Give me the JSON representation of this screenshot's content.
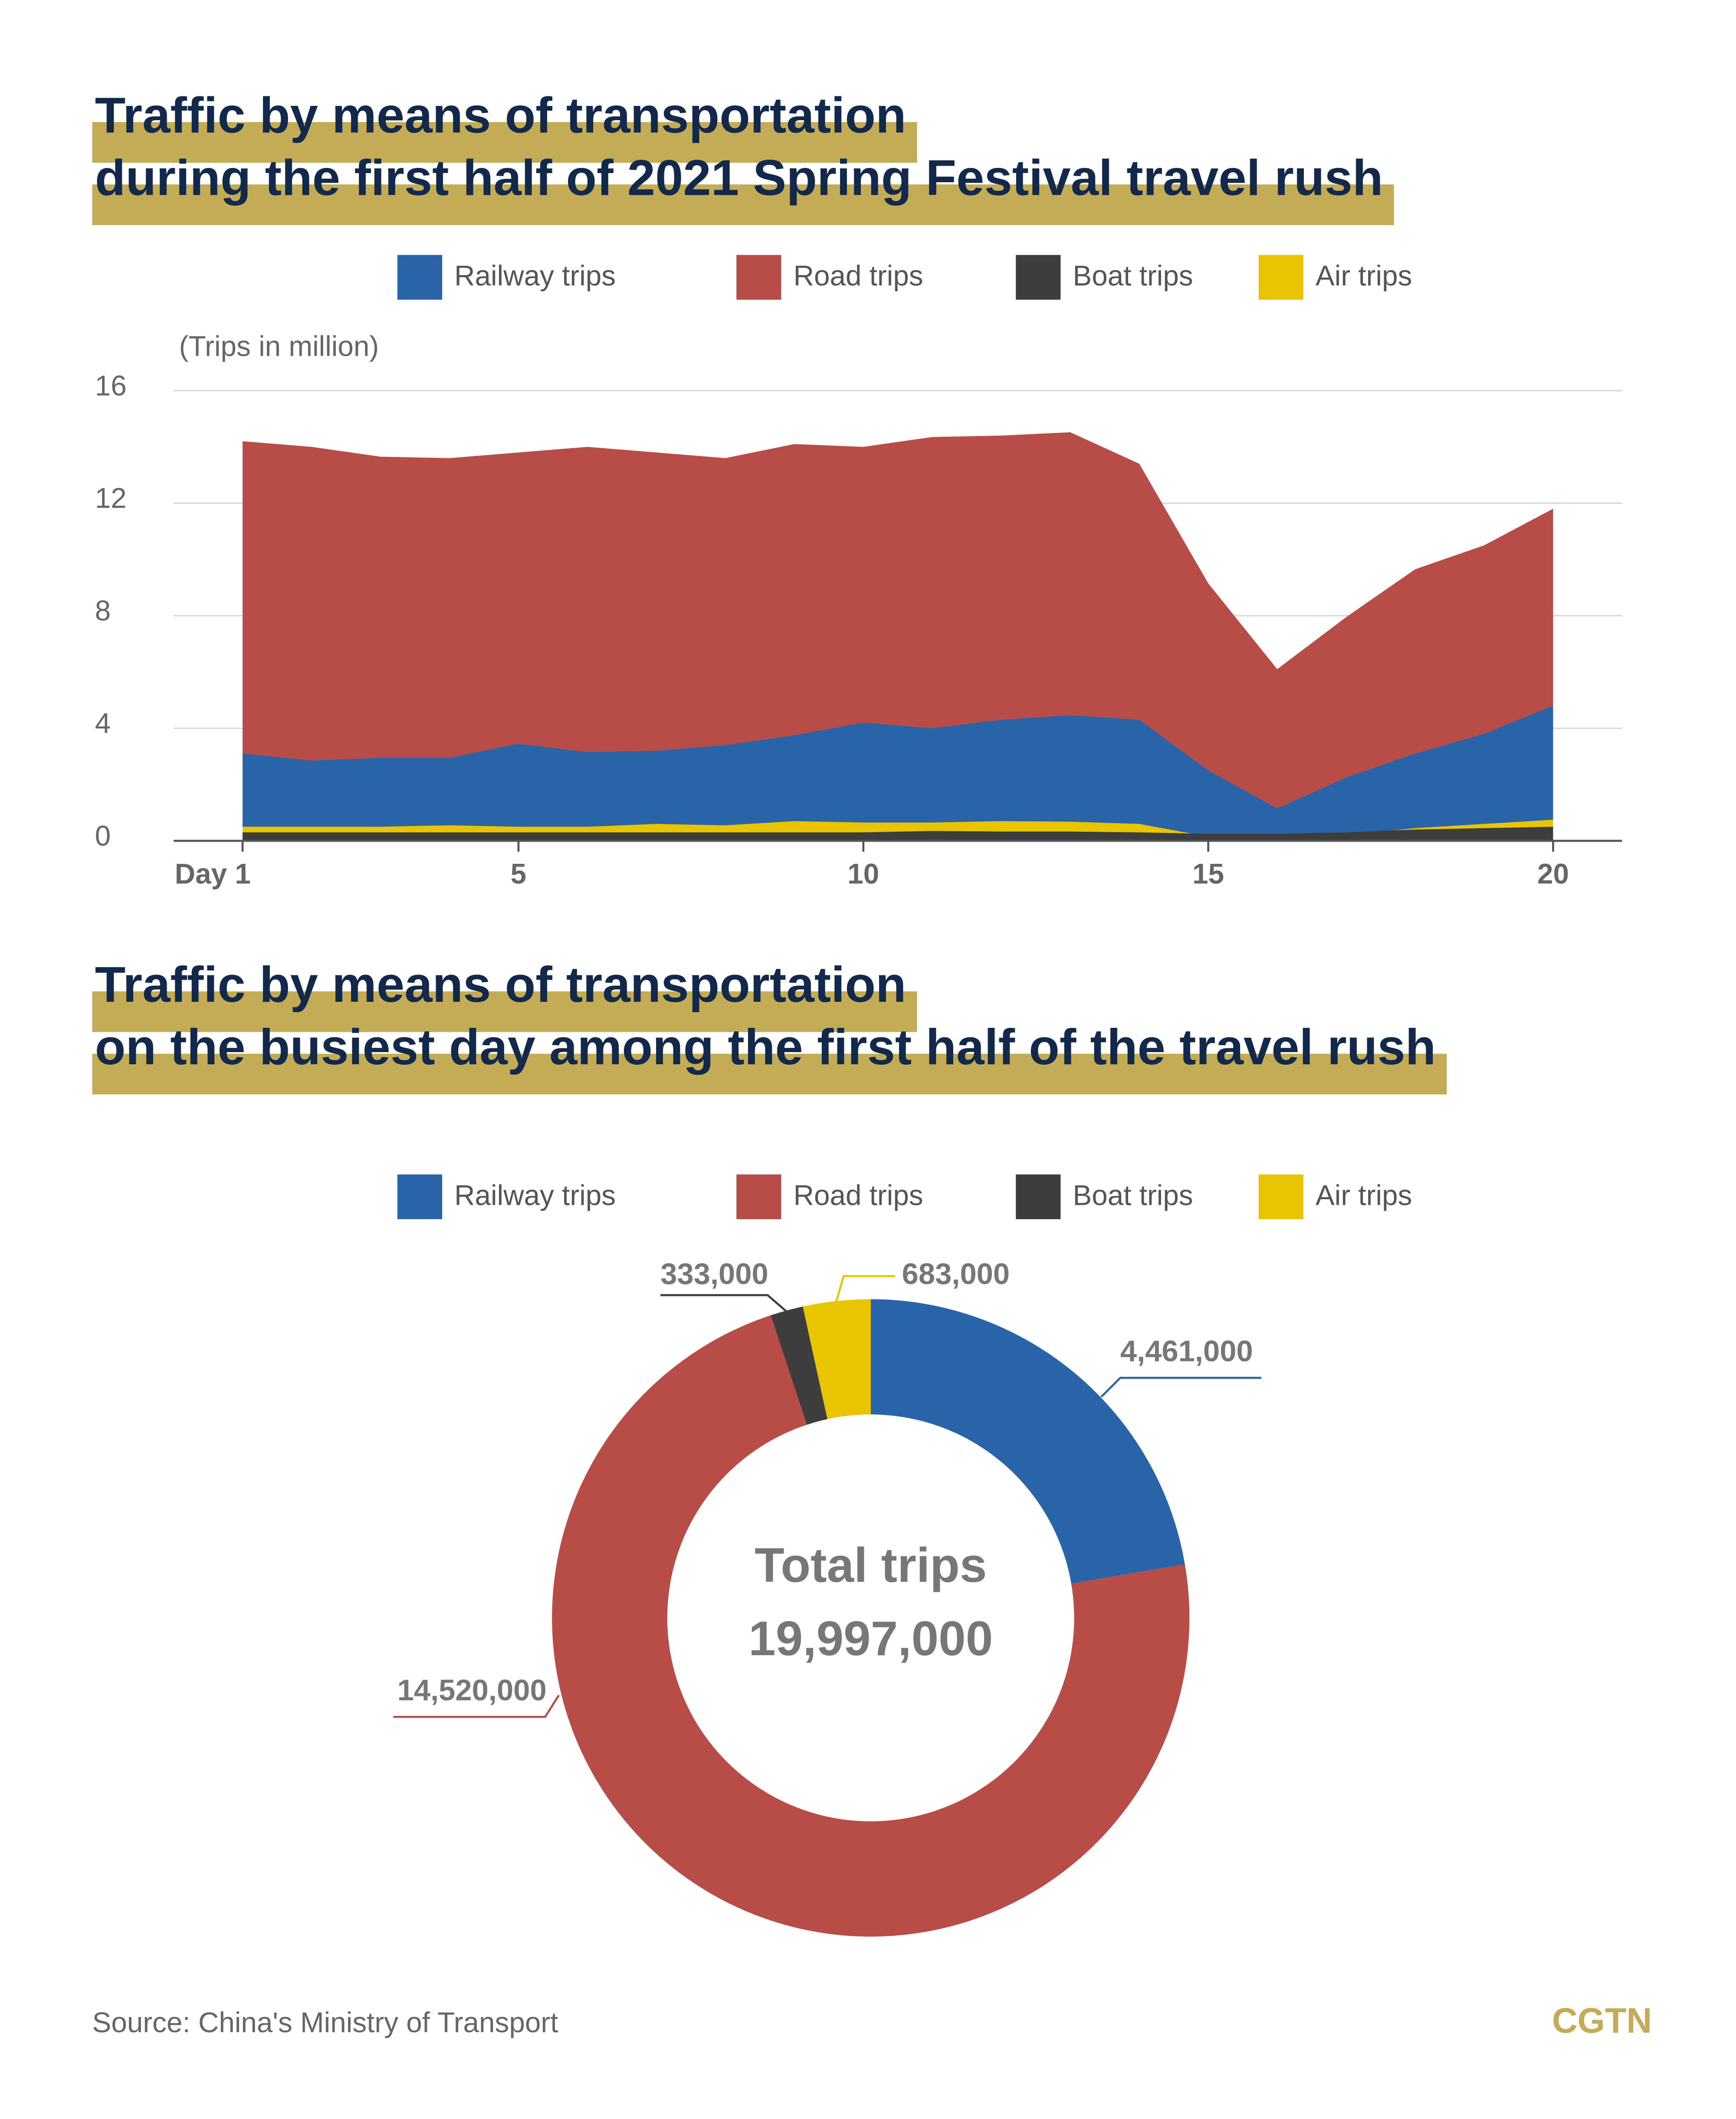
{
  "chart_data": [
    {
      "type": "area",
      "title": [
        "Traffic by means of transportation",
        "during the first half of 2021 Spring Festival travel rush"
      ],
      "y_label": "(Trips in million)",
      "x": [
        1,
        2,
        3,
        4,
        5,
        6,
        7,
        8,
        9,
        10,
        11,
        12,
        13,
        14,
        15,
        16,
        17,
        18,
        19,
        20
      ],
      "xlim": [
        0,
        21
      ],
      "xticks": [
        {
          "value": 1,
          "label": "Day 1"
        },
        5,
        10,
        15,
        20
      ],
      "ylim": [
        0,
        16
      ],
      "yticks": [
        0,
        4,
        8,
        12,
        16
      ],
      "grid": true,
      "series": [
        {
          "name": "Railway trips",
          "color": "#2a64a8",
          "values": [
            3.1,
            2.85,
            2.95,
            2.95,
            3.45,
            3.15,
            3.2,
            3.4,
            3.75,
            4.2,
            4.0,
            4.3,
            4.46,
            4.3,
            2.5,
            1.15,
            2.25,
            3.1,
            3.8,
            4.8
          ]
        },
        {
          "name": "Road trips",
          "color": "#b84c47",
          "values": [
            14.2,
            14.0,
            13.65,
            13.6,
            13.8,
            14.0,
            13.8,
            13.6,
            14.1,
            14.0,
            14.35,
            14.4,
            14.52,
            13.4,
            9.15,
            6.1,
            7.95,
            9.65,
            10.5,
            11.8
          ]
        },
        {
          "name": "Boat trips",
          "color": "#3d3d3d",
          "values": [
            0.3,
            0.3,
            0.3,
            0.3,
            0.3,
            0.3,
            0.3,
            0.3,
            0.3,
            0.3,
            0.35,
            0.33,
            0.33,
            0.3,
            0.25,
            0.25,
            0.3,
            0.4,
            0.45,
            0.5
          ]
        },
        {
          "name": "Air trips",
          "color": "#e8c500",
          "values": [
            0.5,
            0.5,
            0.5,
            0.55,
            0.5,
            0.5,
            0.6,
            0.55,
            0.7,
            0.65,
            0.65,
            0.7,
            0.68,
            0.6,
            0.15,
            0.1,
            0.2,
            0.45,
            0.6,
            0.75
          ]
        }
      ]
    },
    {
      "type": "donut",
      "title": [
        "Traffic by means of transportation",
        "on the busiest day among the first half of the travel rush"
      ],
      "categories": [
        "Railway trips",
        "Road trips",
        "Boat trips",
        "Air trips"
      ],
      "colors": [
        "#2a64a8",
        "#b84c47",
        "#3d3d3d",
        "#e8c500"
      ],
      "values": [
        4461000,
        14520000,
        333000,
        683000
      ],
      "value_labels": [
        "4,461,000",
        "14,520,000",
        "333,000",
        "683,000"
      ],
      "center_text": [
        "Total trips",
        "19,997,000"
      ]
    }
  ],
  "source": "Source: China's Ministry of Transport",
  "logo": "CGTN"
}
